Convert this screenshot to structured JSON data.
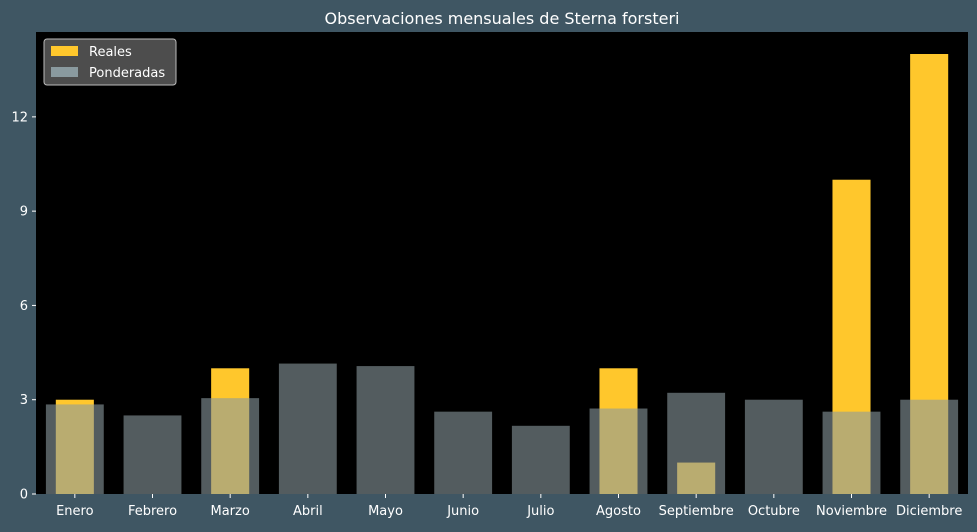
{
  "chart_data": {
    "type": "bar",
    "title": "Observaciones mensuales de Sterna forsteri",
    "xlabel": "",
    "ylabel": "",
    "categories": [
      "Enero",
      "Febrero",
      "Marzo",
      "Abril",
      "Mayo",
      "Junio",
      "Julio",
      "Agosto",
      "Septiembre",
      "Octubre",
      "Noviembre",
      "Diciembre"
    ],
    "series": [
      {
        "name": "Reales",
        "values": [
          3,
          0,
          4,
          0,
          0,
          0,
          0,
          4,
          1,
          0,
          10,
          14
        ],
        "color": "#ffc72c"
      },
      {
        "name": "Ponderadas",
        "values": [
          2.85,
          2.5,
          3.05,
          4.15,
          4.07,
          2.62,
          2.17,
          2.72,
          3.22,
          3.0,
          2.62,
          3.0
        ],
        "color": "#8a9a9f"
      }
    ],
    "ylim": [
      0,
      14.7
    ],
    "yticks": [
      0,
      3,
      6,
      9,
      12
    ],
    "legend": "top-left",
    "grid": false,
    "colors": {
      "figure_background": "#3f5663",
      "plot_background": "#000000",
      "text": "#ffffff",
      "legend_background": "#555555"
    }
  }
}
